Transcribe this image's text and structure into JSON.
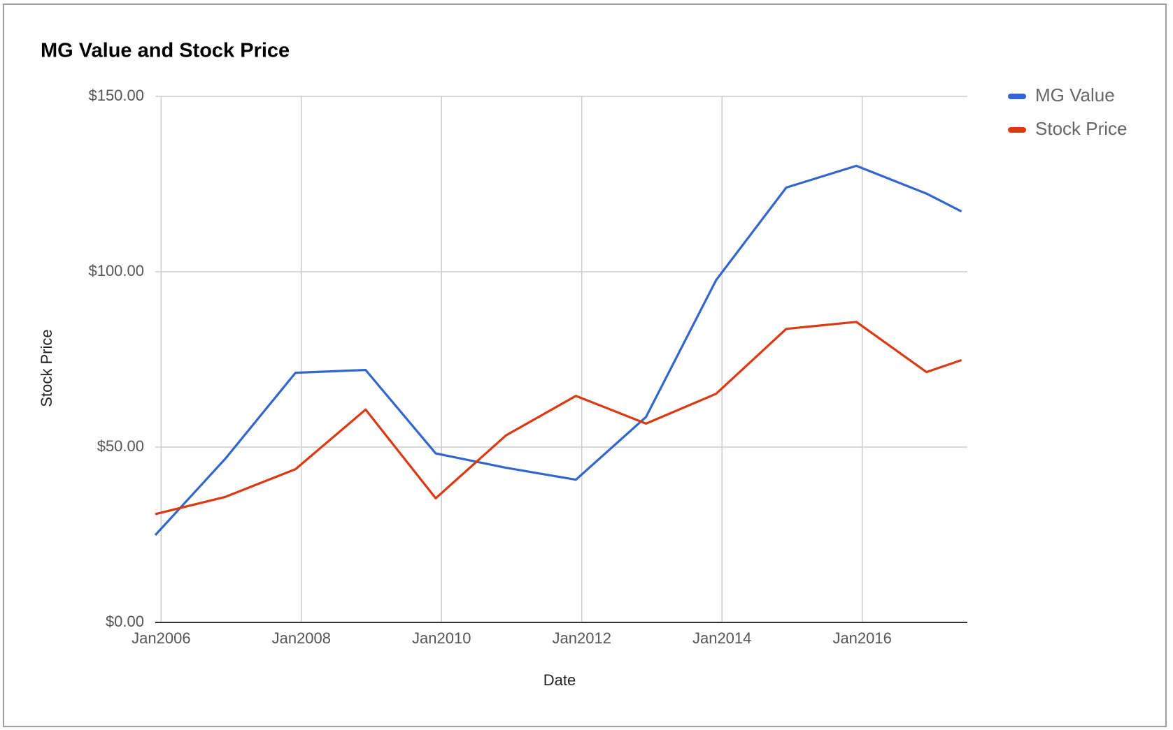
{
  "chart_data": {
    "type": "line",
    "title": "MG Value and Stock Price",
    "x_label": "Date",
    "y_label": "Stock Price",
    "x": [
      "2005-12",
      "2006-12",
      "2007-12",
      "2008-12",
      "2009-12",
      "2010-12",
      "2011-12",
      "2012-12",
      "2013-12",
      "2014-12",
      "2015-12",
      "2016-12",
      "2017-06"
    ],
    "series": [
      {
        "name": "MG Value",
        "color": "#3366cc",
        "values": [
          24.9,
          46.7,
          71.2,
          72.0,
          48.2,
          44.1,
          40.7,
          58.6,
          97.6,
          124.0,
          130.2,
          122.3,
          117.2
        ]
      },
      {
        "name": "Stock Price",
        "color": "#dc3912",
        "values": [
          30.9,
          35.8,
          43.7,
          60.7,
          35.4,
          53.3,
          64.6,
          56.7,
          65.2,
          83.7,
          85.7,
          71.4,
          74.8
        ]
      }
    ],
    "xlim": [
      "2005-12",
      "2017-07"
    ],
    "xticks": [
      {
        "value": "2006-01",
        "label": "Jan2006"
      },
      {
        "value": "2008-01",
        "label": "Jan2008"
      },
      {
        "value": "2010-01",
        "label": "Jan2010"
      },
      {
        "value": "2012-01",
        "label": "Jan2012"
      },
      {
        "value": "2014-01",
        "label": "Jan2014"
      },
      {
        "value": "2016-01",
        "label": "Jan2016"
      }
    ],
    "ylim": [
      0,
      150
    ],
    "yticks": [
      {
        "value": 0,
        "label": "$0.00"
      },
      {
        "value": 50,
        "label": "$50.00"
      },
      {
        "value": 100,
        "label": "$100.00"
      },
      {
        "value": 150,
        "label": "$150.00"
      }
    ],
    "grid": true,
    "legend": "right"
  }
}
